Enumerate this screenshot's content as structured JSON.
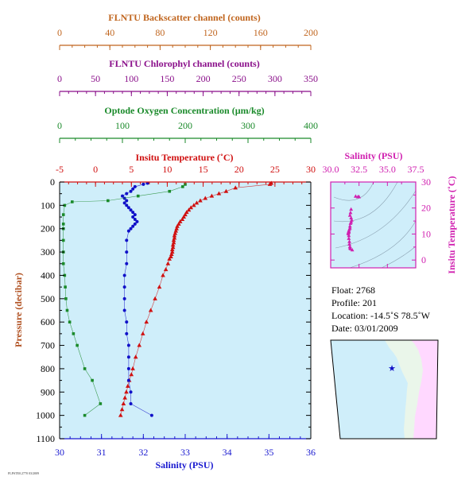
{
  "colors": {
    "backscatter": "#c0651e",
    "chlorophyll": "#8a0f8a",
    "oxygen": "#1a8a2a",
    "temperature": "#d01010",
    "salinity": "#1010c8",
    "salinity_axis": "#1a1ad0",
    "inset_salinity": "#d020b0",
    "pressure": "#b05020",
    "plot_bg": "#cfeefa",
    "ocean": "#cfeefa",
    "land": "#eaf6ea",
    "foreign_land": "#ffd8ff"
  },
  "top_axes": {
    "backscatter": {
      "title": "FLNTU Backscatter channel (counts)",
      "ticks": [
        "0",
        "40",
        "80",
        "120",
        "160",
        "200"
      ],
      "range": [
        0,
        200
      ]
    },
    "chlorophyll": {
      "title": "FLNTU Chlorophyl channel (counts)",
      "ticks": [
        "0",
        "50",
        "100",
        "150",
        "200",
        "250",
        "300",
        "350"
      ],
      "range": [
        0,
        350
      ]
    },
    "oxygen": {
      "title": "Optode Oxygen Concentration (µm/kg)",
      "ticks": [
        "0",
        "100",
        "200",
        "300",
        "400"
      ],
      "range": [
        0,
        400
      ]
    }
  },
  "chart_data": [
    {
      "type": "scatter",
      "ylabel": "Pressure (decibar)",
      "y_ticks": [
        "0",
        "100",
        "200",
        "300",
        "400",
        "500",
        "600",
        "700",
        "800",
        "900",
        "1000",
        "1100"
      ],
      "ylim": [
        1100,
        0
      ],
      "temperature_axis": {
        "title": "Insitu Temperature (˚C)",
        "ticks": [
          "-5",
          "0",
          "5",
          "10",
          "15",
          "20",
          "25",
          "30"
        ],
        "range": [
          -5,
          30
        ]
      },
      "salinity_axis": {
        "title": "Salinity (PSU)",
        "ticks": [
          "30",
          "31",
          "32",
          "33",
          "34",
          "35",
          "36"
        ],
        "range": [
          30,
          36
        ]
      },
      "series": [
        {
          "key": "temperature",
          "marker": "triangle",
          "axis": "temperature",
          "x": [
            24.5,
            24.3,
            19.5,
            18.2,
            17.2,
            16.2,
            15.3,
            14.6,
            14.1,
            13.7,
            13.3,
            13.0,
            12.7,
            12.5,
            12.3,
            12.1,
            11.8,
            11.6,
            11.4,
            11.3,
            11.2,
            11.1,
            11.0,
            11.0,
            10.9,
            10.9,
            10.8,
            10.8,
            10.7,
            10.7,
            10.6,
            10.5,
            10.3,
            10.1,
            9.8,
            9.4,
            8.9,
            8.3,
            7.7,
            7.1,
            6.6,
            6.1,
            5.6,
            5.2,
            5.0,
            4.7,
            4.5,
            4.3,
            4.1,
            3.9,
            3.7,
            3.5
          ],
          "y": [
            5,
            10,
            25,
            40,
            50,
            60,
            70,
            80,
            90,
            100,
            110,
            120,
            130,
            140,
            150,
            160,
            170,
            180,
            190,
            200,
            210,
            220,
            230,
            240,
            250,
            260,
            270,
            280,
            290,
            300,
            310,
            320,
            330,
            350,
            375,
            400,
            450,
            500,
            550,
            600,
            650,
            700,
            750,
            800,
            825,
            850,
            875,
            900,
            925,
            950,
            975,
            1000
          ]
        },
        {
          "key": "salinity",
          "marker": "circle",
          "axis": "salinity",
          "x": [
            32.1,
            32.0,
            31.8,
            31.75,
            31.7,
            31.6,
            31.5,
            31.55,
            31.6,
            31.55,
            31.6,
            31.65,
            31.7,
            31.75,
            31.8,
            31.75,
            31.8,
            31.85,
            31.8,
            31.75,
            31.7,
            31.65,
            31.6,
            31.6,
            31.6,
            31.55,
            31.55,
            31.55,
            31.55,
            31.6,
            31.6,
            31.65,
            31.65,
            31.65,
            31.65,
            31.7,
            31.7,
            32.2
          ],
          "y": [
            5,
            10,
            20,
            30,
            40,
            50,
            60,
            70,
            80,
            90,
            100,
            110,
            120,
            130,
            140,
            150,
            160,
            170,
            180,
            190,
            200,
            210,
            250,
            300,
            350,
            400,
            450,
            500,
            550,
            600,
            650,
            700,
            750,
            800,
            850,
            900,
            950,
            1000
          ]
        },
        {
          "key": "oxygen",
          "marker": "square",
          "axis": "oxygen",
          "x": [
            200,
            196,
            175,
            125,
            77,
            20,
            8,
            6,
            6,
            6,
            6,
            6,
            6,
            8,
            9,
            10,
            12,
            16,
            22,
            28,
            40,
            52,
            65,
            40
          ],
          "y": [
            10,
            20,
            40,
            60,
            80,
            85,
            100,
            140,
            180,
            200,
            250,
            300,
            350,
            400,
            450,
            500,
            550,
            600,
            650,
            700,
            800,
            850,
            950,
            1000
          ]
        }
      ]
    },
    {
      "type": "scatter",
      "xlabel": "Salinity (PSU)",
      "ylabel": "Insitu Temperature (˚C)",
      "x_ticks": [
        "30.0",
        "32.5",
        "35.0",
        "37.5"
      ],
      "y_ticks": [
        "0",
        "10",
        "20",
        "30"
      ],
      "xlim": [
        30,
        37.5
      ],
      "ylim": [
        -3,
        30
      ],
      "x": [
        32.2,
        32.4,
        32.5,
        31.8,
        31.75,
        31.7,
        31.8,
        31.85,
        31.8,
        31.75,
        31.7,
        31.7,
        31.65,
        31.6,
        31.6,
        31.6,
        31.55,
        31.55,
        31.6,
        31.6,
        31.65,
        31.65,
        31.7,
        31.7,
        31.75,
        31.9
      ],
      "y": [
        24.5,
        24.3,
        24.3,
        19.5,
        18.2,
        17.2,
        16.2,
        15.3,
        14.6,
        14.1,
        13.0,
        12.3,
        11.8,
        11.2,
        10.9,
        10.7,
        10.5,
        10.1,
        9.4,
        8.3,
        7.1,
        6.1,
        5.2,
        4.7,
        4.3,
        3.9
      ]
    }
  ],
  "info": {
    "float": "Float:  2768",
    "profile": "Profile:  201",
    "location": "Location:  -14.5˚S  78.5˚W",
    "date": "Date:  03/01/2009"
  },
  "map": {
    "marker_label": "★"
  },
  "footer": {
    "stamp": "FLPSTE0.2770  03/2009"
  }
}
